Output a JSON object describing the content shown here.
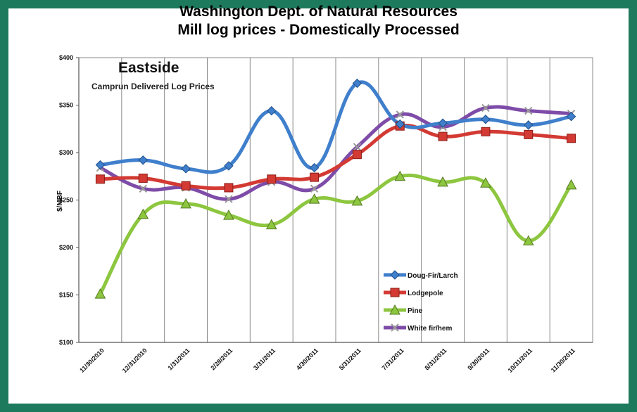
{
  "header": {
    "title_line1": "Washington Dept. of Natural Resources",
    "title_line2": "Mill log prices - Domestically Processed"
  },
  "chart_data": {
    "type": "line",
    "title": "Eastside",
    "subtitle": "Camprun Delivered Log Prices",
    "xlabel": "",
    "ylabel": "$/MBF",
    "ylim": [
      100,
      400
    ],
    "yticks": [
      "$100",
      "$150",
      "$200",
      "$250",
      "$300",
      "$350",
      "$400"
    ],
    "grid": "vertical",
    "legend_position": "bottom-right",
    "categories": [
      "11/30/2010",
      "12/31/2010",
      "1/31/2011",
      "2/28/2011",
      "3/31/2011",
      "4/30/2011",
      "5/31/2011",
      "7/31/2011",
      "8/31/2011",
      "9/30/2011",
      "10/31/2011",
      "11/30/2011"
    ],
    "series": [
      {
        "name": "Doug-Fir/Larch",
        "color": "#3f7fcc",
        "marker": "diamond",
        "values": [
          287,
          292,
          283,
          286,
          344,
          284,
          373,
          330,
          331,
          335,
          329,
          338
        ]
      },
      {
        "name": "Lodgepole",
        "color": "#d33a33",
        "marker": "square",
        "values": [
          272,
          273,
          265,
          263,
          272,
          274,
          298,
          328,
          317,
          322,
          319,
          315
        ]
      },
      {
        "name": "Pine",
        "color": "#8dc63f",
        "marker": "triangle",
        "values": [
          151,
          235,
          246,
          234,
          224,
          251,
          249,
          275,
          269,
          268,
          207,
          266
        ]
      },
      {
        "name": "White fir/hem",
        "color": "#7e4ca8",
        "marker": "x",
        "values": [
          284,
          262,
          263,
          251,
          269,
          262,
          306,
          340,
          327,
          347,
          344,
          341
        ]
      }
    ]
  }
}
